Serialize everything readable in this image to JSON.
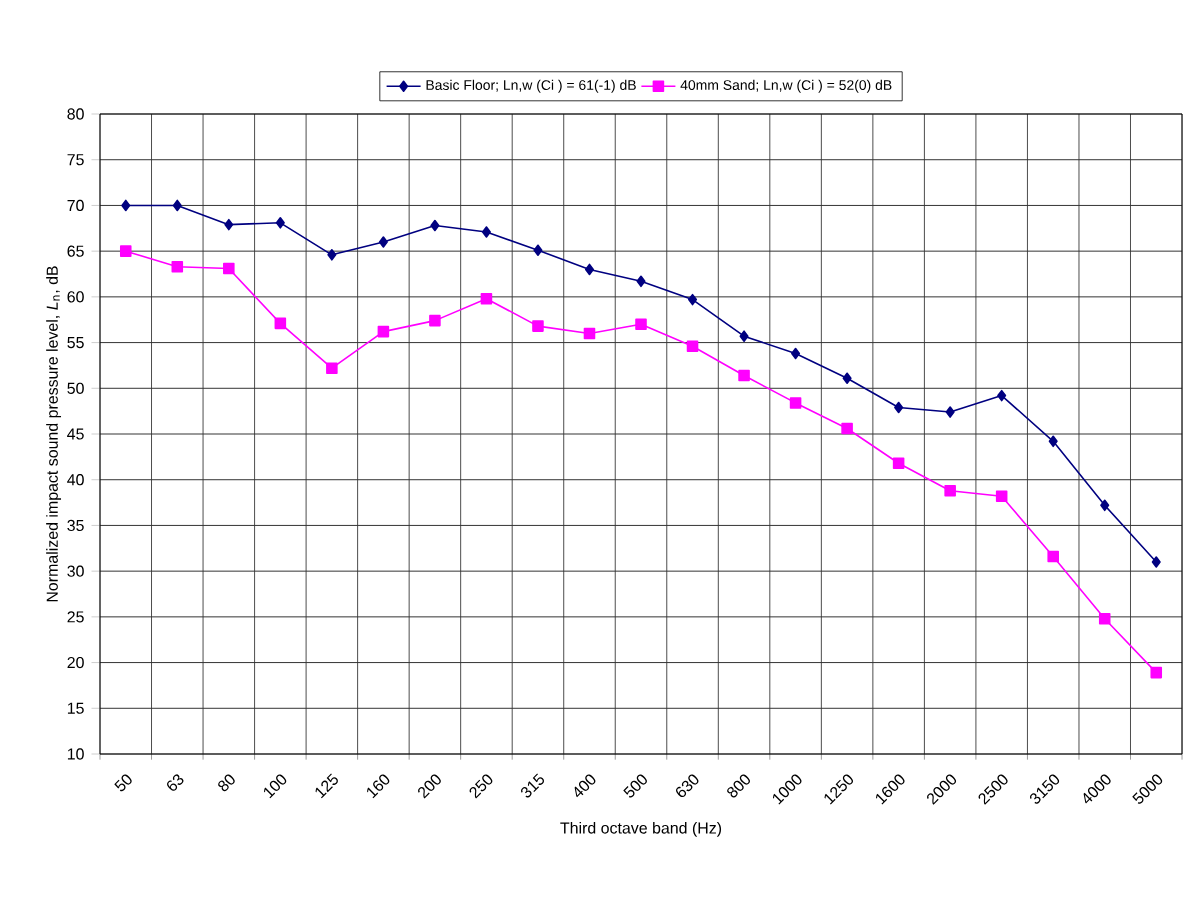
{
  "chart_data": {
    "type": "line",
    "xlabel": "Third octave band (Hz)",
    "ylabel": "Normalized impact sound pressure level, *L*$_{n}$, dB",
    "categories": [
      "50",
      "63",
      "80",
      "100",
      "125",
      "160",
      "200",
      "250",
      "315",
      "400",
      "500",
      "630",
      "800",
      "1000",
      "1250",
      "1600",
      "2000",
      "2500",
      "3150",
      "4000",
      "5000"
    ],
    "series": [
      {
        "name": "Basic Floor; Ln,w (Ci ) = 61(-1) dB",
        "color": "#000080",
        "marker": "diamond",
        "values": [
          70,
          70,
          67.9,
          68.1,
          64.6,
          66,
          67.8,
          67.1,
          65.1,
          63,
          61.7,
          59.7,
          55.7,
          53.8,
          51.1,
          47.9,
          47.4,
          49.2,
          44.2,
          37.2,
          31
        ]
      },
      {
        "name": "40mm Sand; Ln,w (Ci ) = 52(0) dB",
        "color": "#ff00ff",
        "marker": "square",
        "values": [
          65,
          63.3,
          63.1,
          57.1,
          52.2,
          56.2,
          57.4,
          59.8,
          56.8,
          56,
          57,
          54.6,
          51.4,
          48.4,
          45.6,
          41.8,
          38.8,
          38.2,
          31.6,
          24.8,
          18.9
        ]
      }
    ],
    "ylim": [
      10,
      80
    ],
    "yticks": [
      10,
      15,
      20,
      25,
      30,
      35,
      40,
      45,
      50,
      55,
      60,
      65,
      70,
      75,
      80
    ],
    "grid": true,
    "legend": "top",
    "line_style": "solid"
  }
}
